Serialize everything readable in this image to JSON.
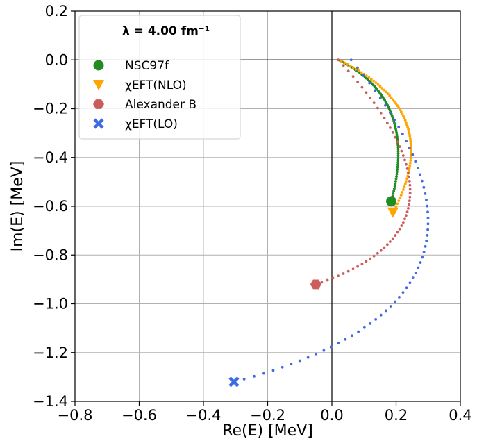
{
  "chart_data": {
    "type": "scatter",
    "title": "",
    "xlabel": "Re(E) [MeV]",
    "ylabel": "Im(E) [MeV]",
    "xlim": [
      -0.8,
      0.4
    ],
    "ylim": [
      -1.4,
      0.2
    ],
    "xticks": [
      -0.8,
      -0.6,
      -0.4,
      -0.2,
      0.0,
      0.2,
      0.4
    ],
    "yticks": [
      0.2,
      0.0,
      -0.2,
      -0.4,
      -0.6,
      -0.8,
      -1.0,
      -1.2,
      -1.4
    ],
    "xtick_labels": [
      "−0.8",
      "−0.6",
      "−0.4",
      "−0.2",
      "0.0",
      "0.2",
      "0.4"
    ],
    "ytick_labels": [
      "0.2",
      "0.0",
      "−0.2",
      "−0.4",
      "−0.6",
      "−0.8",
      "−1.0",
      "−1.2",
      "−1.4"
    ],
    "grid": true,
    "reference_lines": {
      "x": 0.0,
      "y": 0.0
    },
    "legend": {
      "placement": "top-left",
      "title": "λ = 4.00 fm⁻¹"
    },
    "series": [
      {
        "name": "NSC97f",
        "color": "#228b22",
        "endpoint_marker": "circle",
        "trajectory_start": [
          0.02,
          0.0
        ],
        "trajectory_control": [
          0.27,
          -0.16
        ],
        "endpoint": [
          0.185,
          -0.58
        ],
        "n_points": 80
      },
      {
        "name": "χEFT(NLO)",
        "color": "#ffa500",
        "endpoint_marker": "triangle-down",
        "trajectory_start": [
          0.02,
          0.0
        ],
        "trajectory_control": [
          0.36,
          -0.21
        ],
        "endpoint": [
          0.19,
          -0.625
        ],
        "n_points": 70
      },
      {
        "name": "Alexander B",
        "color": "#cd5c5c",
        "endpoint_marker": "hexagon",
        "trajectory_start": [
          0.02,
          0.0
        ],
        "trajectory_control": [
          0.5,
          -0.68
        ],
        "endpoint": [
          -0.05,
          -0.92
        ],
        "n_points": 60
      },
      {
        "name": "χEFT(LO)",
        "color": "#4169e1",
        "endpoint_marker": "x",
        "trajectory_start": [
          0.06,
          0.0
        ],
        "trajectory_control": [
          0.68,
          -0.98
        ],
        "endpoint": [
          -0.305,
          -1.32
        ],
        "n_points": 62
      }
    ]
  }
}
